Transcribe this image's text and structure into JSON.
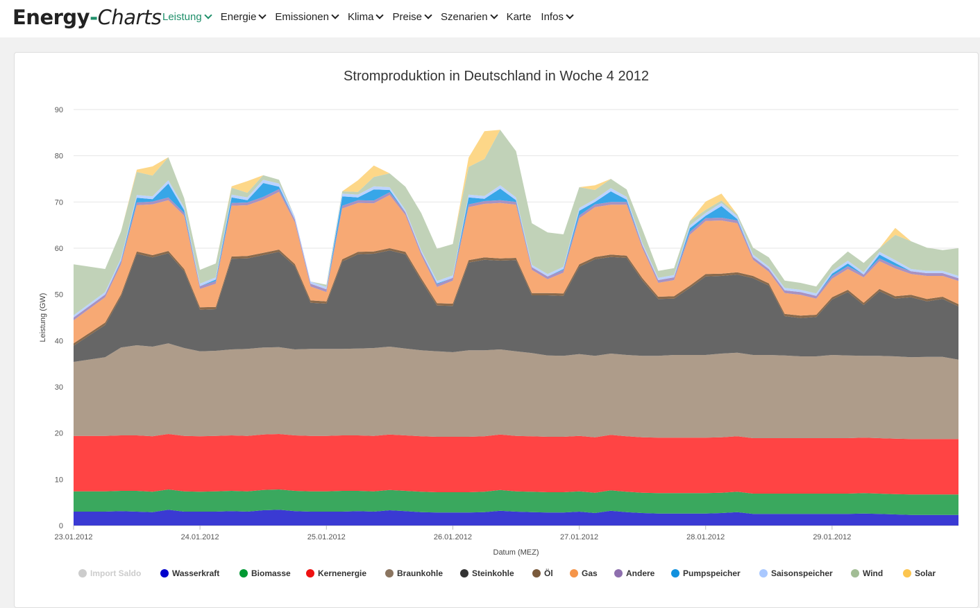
{
  "nav": {
    "logo_part1": "Energy",
    "logo_sep": "-",
    "logo_part2": "Charts",
    "items": [
      {
        "label": "Leistung",
        "active": true,
        "dropdown": true
      },
      {
        "label": "Energie",
        "active": false,
        "dropdown": true
      },
      {
        "label": "Emissionen",
        "active": false,
        "dropdown": true
      },
      {
        "label": "Klima",
        "active": false,
        "dropdown": true
      },
      {
        "label": "Preise",
        "active": false,
        "dropdown": true
      },
      {
        "label": "Szenarien",
        "active": false,
        "dropdown": true
      },
      {
        "label": "Karte",
        "active": false,
        "dropdown": false
      },
      {
        "label": "Infos",
        "active": false,
        "dropdown": true
      }
    ]
  },
  "chart_data": {
    "type": "area",
    "stacked": true,
    "title": "Stromproduktion in Deutschland in Woche 4 2012",
    "xlabel": "Datum (MEZ)",
    "ylabel": "Leistung (GW)",
    "ylim": [
      0,
      90
    ],
    "yticks": [
      0,
      10,
      20,
      30,
      40,
      50,
      60,
      70,
      80,
      90
    ],
    "xlim_hours": [
      0,
      168
    ],
    "xtick_hours": [
      0,
      24,
      48,
      72,
      96,
      120,
      144
    ],
    "xtick_labels": [
      "23.01.2012",
      "24.01.2012",
      "25.01.2012",
      "26.01.2012",
      "27.01.2012",
      "28.01.2012",
      "29.01.2012"
    ],
    "grid": true,
    "legend_position": "bottom",
    "x_hours": [
      0,
      6,
      9,
      12,
      15,
      18,
      21,
      24,
      27,
      30,
      33,
      36,
      39,
      42,
      45,
      48,
      51,
      54,
      57,
      60,
      63,
      66,
      69,
      72,
      75,
      78,
      81,
      84,
      87,
      90,
      93,
      96,
      99,
      102,
      105,
      108,
      111,
      114,
      117,
      120,
      123,
      126,
      129,
      132,
      135,
      138,
      141,
      144,
      147,
      150,
      153,
      156,
      159,
      162,
      165,
      168
    ],
    "legend": [
      {
        "name": "Import Saldo",
        "color": "#cccccc",
        "muted": true
      },
      {
        "name": "Wasserkraft",
        "color": "#0000cc"
      },
      {
        "name": "Biomasse",
        "color": "#009933"
      },
      {
        "name": "Kernenergie",
        "color": "#ee1111"
      },
      {
        "name": "Braunkohle",
        "color": "#8b7560"
      },
      {
        "name": "Steinkohle",
        "color": "#333333"
      },
      {
        "name": "Öl",
        "color": "#7a5a3c"
      },
      {
        "name": "Gas",
        "color": "#f5954a"
      },
      {
        "name": "Andere",
        "color": "#8e6fae"
      },
      {
        "name": "Pumpspeicher",
        "color": "#1191de"
      },
      {
        "name": "Saisonspeicher",
        "color": "#a9c8ff"
      },
      {
        "name": "Wind",
        "color": "#a2bd95"
      },
      {
        "name": "Solar",
        "color": "#fcc54f"
      }
    ],
    "series": [
      {
        "name": "Wasserkraft",
        "color": "#3a3ad3",
        "values": [
          3.0,
          3.0,
          3.1,
          3.0,
          2.9,
          3.4,
          3.0,
          3.0,
          3.0,
          3.1,
          3.0,
          3.3,
          3.4,
          3.1,
          3.0,
          3.0,
          3.0,
          3.1,
          3.0,
          3.3,
          3.1,
          2.9,
          2.8,
          2.8,
          2.8,
          2.9,
          3.2,
          3.0,
          2.9,
          2.8,
          2.8,
          3.0,
          2.7,
          3.2,
          2.9,
          2.7,
          2.6,
          2.6,
          2.6,
          2.6,
          2.7,
          2.9,
          2.5,
          2.5,
          2.5,
          2.5,
          2.5,
          2.5,
          2.5,
          2.6,
          2.5,
          2.4,
          2.3,
          2.3,
          2.3,
          2.3
        ]
      },
      {
        "name": "Biomasse",
        "color": "#3aa85e",
        "values": [
          4.4,
          4.4,
          4.4,
          4.5,
          4.4,
          4.4,
          4.4,
          4.3,
          4.4,
          4.4,
          4.4,
          4.4,
          4.4,
          4.4,
          4.4,
          4.4,
          4.5,
          4.4,
          4.4,
          4.4,
          4.4,
          4.4,
          4.4,
          4.4,
          4.4,
          4.4,
          4.5,
          4.4,
          4.4,
          4.4,
          4.4,
          4.4,
          4.4,
          4.4,
          4.4,
          4.4,
          4.4,
          4.4,
          4.4,
          4.4,
          4.4,
          4.4,
          4.4,
          4.4,
          4.4,
          4.4,
          4.4,
          4.4,
          4.4,
          4.4,
          4.4,
          4.4,
          4.4,
          4.4,
          4.4,
          4.4
        ]
      },
      {
        "name": "Kernenergie",
        "color": "#ff4444",
        "values": [
          12.0,
          12.0,
          12.0,
          12.0,
          12.0,
          12.0,
          12.0,
          12.0,
          12.0,
          12.0,
          12.0,
          12.0,
          12.0,
          12.0,
          12.0,
          12.0,
          12.0,
          12.0,
          12.0,
          12.0,
          12.0,
          12.0,
          12.0,
          12.0,
          12.0,
          12.0,
          12.0,
          12.0,
          12.0,
          12.0,
          12.0,
          12.0,
          12.0,
          12.0,
          12.0,
          12.0,
          12.0,
          12.0,
          12.0,
          12.0,
          12.0,
          12.0,
          12.0,
          12.0,
          12.0,
          12.0,
          12.0,
          12.0,
          12.0,
          12.0,
          12.0,
          12.0,
          12.0,
          12.0,
          12.0,
          12.0
        ]
      },
      {
        "name": "Braunkohle",
        "color": "#ae9c8a",
        "values": [
          16.0,
          17.0,
          19.0,
          19.5,
          19.4,
          19.6,
          19.0,
          18.4,
          18.4,
          18.6,
          18.8,
          18.8,
          18.8,
          18.6,
          18.8,
          18.8,
          18.7,
          18.8,
          19.0,
          19.0,
          18.8,
          18.6,
          18.5,
          18.3,
          18.7,
          18.6,
          18.4,
          18.3,
          18.0,
          17.6,
          17.5,
          17.7,
          17.6,
          17.6,
          17.6,
          17.6,
          17.7,
          17.9,
          17.9,
          17.9,
          18.1,
          18.1,
          18.0,
          18.0,
          17.9,
          17.7,
          17.7,
          18.0,
          17.9,
          17.7,
          17.8,
          17.8,
          17.7,
          17.8,
          17.8,
          17.2
        ]
      },
      {
        "name": "Steinkohle",
        "color": "#666666",
        "values": [
          3.5,
          7.0,
          11.0,
          19.8,
          19.3,
          19.5,
          16.6,
          9.0,
          9.0,
          19.6,
          19.6,
          20.0,
          20.6,
          18.0,
          10.0,
          9.8,
          18.9,
          20.4,
          20.4,
          20.8,
          20.4,
          15.1,
          9.9,
          10.0,
          19.0,
          19.6,
          19.2,
          19.7,
          12.5,
          13.0,
          13.0,
          18.9,
          20.9,
          20.9,
          21.0,
          16.3,
          12.3,
          12.2,
          14.5,
          17.0,
          16.8,
          16.9,
          16.6,
          15.0,
          8.5,
          8.3,
          8.5,
          12.0,
          13.7,
          11.0,
          14.0,
          12.5,
          13.0,
          12.0,
          12.5,
          11.5
        ]
      },
      {
        "name": "Öl",
        "color": "#8a6a4c",
        "values": [
          0.5,
          0.5,
          0.5,
          0.5,
          0.5,
          0.5,
          0.5,
          0.5,
          0.5,
          0.5,
          0.5,
          0.5,
          0.5,
          0.5,
          0.5,
          0.5,
          0.5,
          0.5,
          0.5,
          0.5,
          0.5,
          0.5,
          0.5,
          0.5,
          0.5,
          0.5,
          0.5,
          0.5,
          0.5,
          0.5,
          0.5,
          0.5,
          0.5,
          0.5,
          0.5,
          0.5,
          0.5,
          0.5,
          0.5,
          0.5,
          0.5,
          0.5,
          0.5,
          0.5,
          0.5,
          0.5,
          0.5,
          0.5,
          0.5,
          0.5,
          0.5,
          0.5,
          0.5,
          0.5,
          0.5,
          0.5
        ]
      },
      {
        "name": "Gas",
        "color": "#f7a974",
        "values": [
          5.0,
          5.5,
          6.5,
          10.0,
          11.0,
          11.0,
          11.5,
          4.0,
          5.0,
          11.0,
          11.0,
          11.5,
          12.5,
          9.0,
          3.0,
          2.0,
          11.0,
          10.6,
          10.4,
          11.5,
          8.0,
          5.0,
          3.5,
          5.0,
          11.5,
          11.6,
          12.0,
          11.5,
          5.0,
          3.0,
          4.5,
          10.0,
          10.8,
          10.8,
          11.0,
          6.5,
          3.0,
          3.5,
          11.0,
          11.5,
          11.5,
          10.6,
          3.5,
          2.5,
          4.5,
          4.5,
          3.5,
          4.0,
          4.5,
          5.5,
          6.0,
          6.0,
          4.5,
          5.0,
          4.5,
          5.0
        ]
      },
      {
        "name": "Andere",
        "color": "#a892c2",
        "values": [
          0.6,
          0.6,
          0.6,
          0.6,
          0.6,
          0.6,
          0.6,
          0.6,
          0.6,
          0.6,
          0.6,
          0.6,
          0.6,
          0.6,
          0.6,
          0.6,
          0.6,
          0.6,
          0.6,
          0.6,
          0.6,
          0.6,
          0.6,
          0.6,
          0.6,
          0.6,
          0.6,
          0.6,
          0.6,
          0.6,
          0.6,
          0.6,
          0.6,
          0.6,
          0.6,
          0.6,
          0.6,
          0.6,
          0.6,
          0.6,
          0.6,
          0.6,
          0.6,
          0.6,
          0.6,
          0.6,
          0.6,
          0.6,
          0.6,
          0.6,
          0.6,
          0.6,
          0.6,
          0.6,
          0.6,
          0.6
        ]
      },
      {
        "name": "Pumpspeicher",
        "color": "#37a6e8",
        "values": [
          0.0,
          0.0,
          0.2,
          1.0,
          0.5,
          3.0,
          0.6,
          0.0,
          0.3,
          1.2,
          0.5,
          3.0,
          0.5,
          0.0,
          0.0,
          0.0,
          2.0,
          0.6,
          2.4,
          0.5,
          0.0,
          0.0,
          0.2,
          0.0,
          1.5,
          0.5,
          2.5,
          0.4,
          0.0,
          0.0,
          0.2,
          1.0,
          0.5,
          2.3,
          0.5,
          0.0,
          0.0,
          0.0,
          0.8,
          0.5,
          2.5,
          0.3,
          0.0,
          0.0,
          0.0,
          0.0,
          0.0,
          0.5,
          0.6,
          0.0,
          0.8,
          0.6,
          0.0,
          0.0,
          0.0,
          0.0
        ]
      },
      {
        "name": "Saisonspeicher",
        "color": "#bcd3ff",
        "values": [
          0.5,
          0.5,
          0.5,
          0.6,
          0.6,
          0.7,
          0.6,
          0.5,
          0.5,
          0.6,
          0.6,
          0.7,
          0.7,
          0.6,
          0.5,
          0.5,
          0.6,
          0.6,
          0.7,
          0.6,
          0.5,
          0.5,
          0.5,
          0.5,
          0.6,
          0.6,
          0.7,
          0.6,
          0.5,
          0.5,
          0.5,
          0.6,
          0.6,
          0.7,
          0.6,
          0.5,
          0.5,
          0.5,
          0.6,
          0.6,
          0.7,
          0.6,
          0.5,
          0.5,
          0.5,
          0.5,
          0.5,
          0.5,
          0.6,
          0.5,
          0.6,
          0.6,
          0.5,
          0.5,
          0.5,
          0.5
        ]
      },
      {
        "name": "Wind",
        "color": "#c1d2b8",
        "values": [
          11.0,
          5.0,
          5.8,
          5.0,
          4.5,
          5.0,
          2.0,
          3.0,
          3.0,
          1.5,
          1.0,
          1.0,
          0.8,
          0.0,
          0.0,
          0.5,
          0.5,
          0.6,
          2.0,
          3.0,
          5.0,
          8.0,
          7.0,
          6.8,
          6.0,
          8.0,
          12.0,
          10.0,
          9.0,
          9.0,
          7.0,
          4.5,
          2.0,
          2.0,
          1.6,
          3.0,
          1.5,
          1.5,
          1.0,
          0.7,
          0.5,
          0.4,
          1.5,
          2.0,
          1.6,
          1.5,
          1.5,
          1.3,
          2.0,
          2.0,
          0.8,
          5.5,
          6.0,
          5.0,
          4.5,
          6.0
        ]
      },
      {
        "name": "Solar",
        "color": "#fdd788",
        "values": [
          0.0,
          0.0,
          0.0,
          0.5,
          2.0,
          0.0,
          0.0,
          0.0,
          0.0,
          0.3,
          2.5,
          0.0,
          0.0,
          0.0,
          0.0,
          0.0,
          0.0,
          2.5,
          2.5,
          0.0,
          0.0,
          0.0,
          0.0,
          0.0,
          2.0,
          6.0,
          0.0,
          0.0,
          0.0,
          0.0,
          0.0,
          0.0,
          1.0,
          0.0,
          0.0,
          0.0,
          0.0,
          0.0,
          0.0,
          1.8,
          1.5,
          0.0,
          0.0,
          0.0,
          0.0,
          0.0,
          0.0,
          0.0,
          0.0,
          0.0,
          0.0,
          1.5,
          0.0,
          0.0,
          0.0,
          0.0
        ]
      }
    ]
  }
}
